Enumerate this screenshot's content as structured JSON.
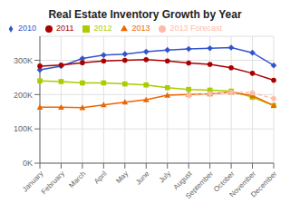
{
  "chart_data": {
    "type": "line",
    "title": "Real Estate Inventory Growth by Year",
    "categories": [
      "January",
      "February",
      "March",
      "April",
      "May",
      "June",
      "July",
      "August",
      "September",
      "October",
      "November",
      "December"
    ],
    "series": [
      {
        "name": "2010",
        "color": "#3355cc",
        "marker": "diamond",
        "line_style": "solid",
        "values": [
          272000,
          283000,
          305000,
          315000,
          318000,
          325000,
          330000,
          333000,
          335000,
          337000,
          322000,
          285000
        ]
      },
      {
        "name": "2011",
        "color": "#aa0000",
        "marker": "circle",
        "line_style": "solid",
        "values": [
          283000,
          286000,
          293000,
          298000,
          300000,
          302000,
          298000,
          292000,
          288000,
          278000,
          262000,
          242000
        ]
      },
      {
        "name": "2012",
        "color": "#aacc00",
        "marker": "square",
        "line_style": "solid",
        "values": [
          240000,
          238000,
          234000,
          234000,
          231000,
          228000,
          220000,
          215000,
          213000,
          210000,
          192000,
          168000
        ]
      },
      {
        "name": "2013",
        "color": "#ee6600",
        "marker": "triangle",
        "line_style": "solid",
        "values": [
          163000,
          163000,
          162000,
          170000,
          178000,
          185000,
          198000,
          200000,
          202000,
          207000,
          197000,
          168000
        ]
      },
      {
        "name": "2013 Forecast",
        "color": "#ffbbaa",
        "marker": "circle",
        "line_style": "dashed",
        "values": [
          null,
          null,
          null,
          null,
          null,
          null,
          null,
          197000,
          203000,
          207000,
          205000,
          188000
        ]
      }
    ],
    "ylim": [
      0,
      370000
    ],
    "yticks": [
      {
        "value": 0,
        "label": "0K"
      },
      {
        "value": 100000,
        "label": "100K"
      },
      {
        "value": 200000,
        "label": "200K"
      },
      {
        "value": 300000,
        "label": "300K"
      }
    ],
    "grid": true,
    "legend": "top"
  }
}
